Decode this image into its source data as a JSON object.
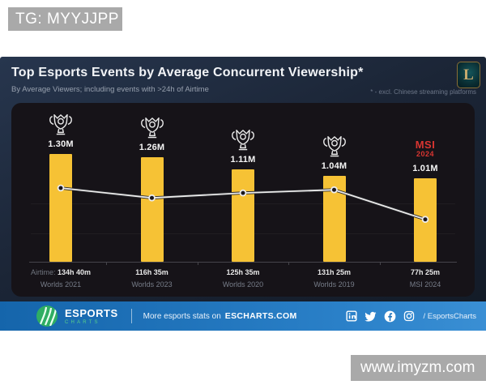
{
  "watermarks": {
    "top": "TG: MYYJJPP",
    "bottom": "www.imyzm.com"
  },
  "header": {
    "title": "Top Esports Events by Average Concurrent Viewership*",
    "subtitle": "By Average Viewers; including events with >24h of Airtime",
    "footnote": "* - excl. Chinese streaming platforms",
    "logo_letter": "L"
  },
  "chart_data": {
    "type": "bar",
    "title": "Top Esports Events by Average Concurrent Viewership*",
    "subtitle": "By Average Viewers; including events with >24h of Airtime",
    "categories": [
      "Worlds 2021",
      "Worlds 2023",
      "Worlds 2020",
      "Worlds 2019",
      "MSI 2024"
    ],
    "series": [
      {
        "name": "Average Concurrent Viewership",
        "type": "bar",
        "unit": "viewers",
        "values": [
          1300000,
          1260000,
          1110000,
          1040000,
          1010000
        ],
        "labels": [
          "1.30M",
          "1.26M",
          "1.11M",
          "1.04M",
          "1.01M"
        ],
        "color": "#F6C235"
      },
      {
        "name": "Airtime",
        "type": "line",
        "unit": "hours",
        "values": [
          134.667,
          116.583,
          125.583,
          131.417,
          77.417
        ],
        "labels": [
          "134h 40m",
          "116h 35m",
          "125h 35m",
          "131h 25m",
          "77h 25m"
        ],
        "color": "#ECECEC"
      }
    ],
    "airtime_prefix": "Airtime:",
    "icons": [
      "worlds-trophy",
      "worlds-trophy",
      "worlds-trophy",
      "worlds-trophy",
      "msi-2024"
    ],
    "msi_logo_lines": [
      "MSI",
      "2024"
    ],
    "ylim": [
      0,
      1400000
    ],
    "grid": "subtle-horizontal",
    "legend_position": "none"
  },
  "footer": {
    "brand_line1": "ESPORTS",
    "brand_line2": "CHARTS",
    "text": "More esports stats on",
    "site": "ESCHARTS.COM",
    "social_handle": "/ EsportsCharts",
    "social_icons": [
      "linkedin",
      "twitter",
      "facebook",
      "instagram"
    ]
  },
  "colors": {
    "bar": "#F6C235",
    "panel_bg": "#161318",
    "card_bg": "#1B2536",
    "footer_blue": "#1E74BD",
    "msi_red": "#D93531",
    "accent_green": "#57CF8B"
  }
}
